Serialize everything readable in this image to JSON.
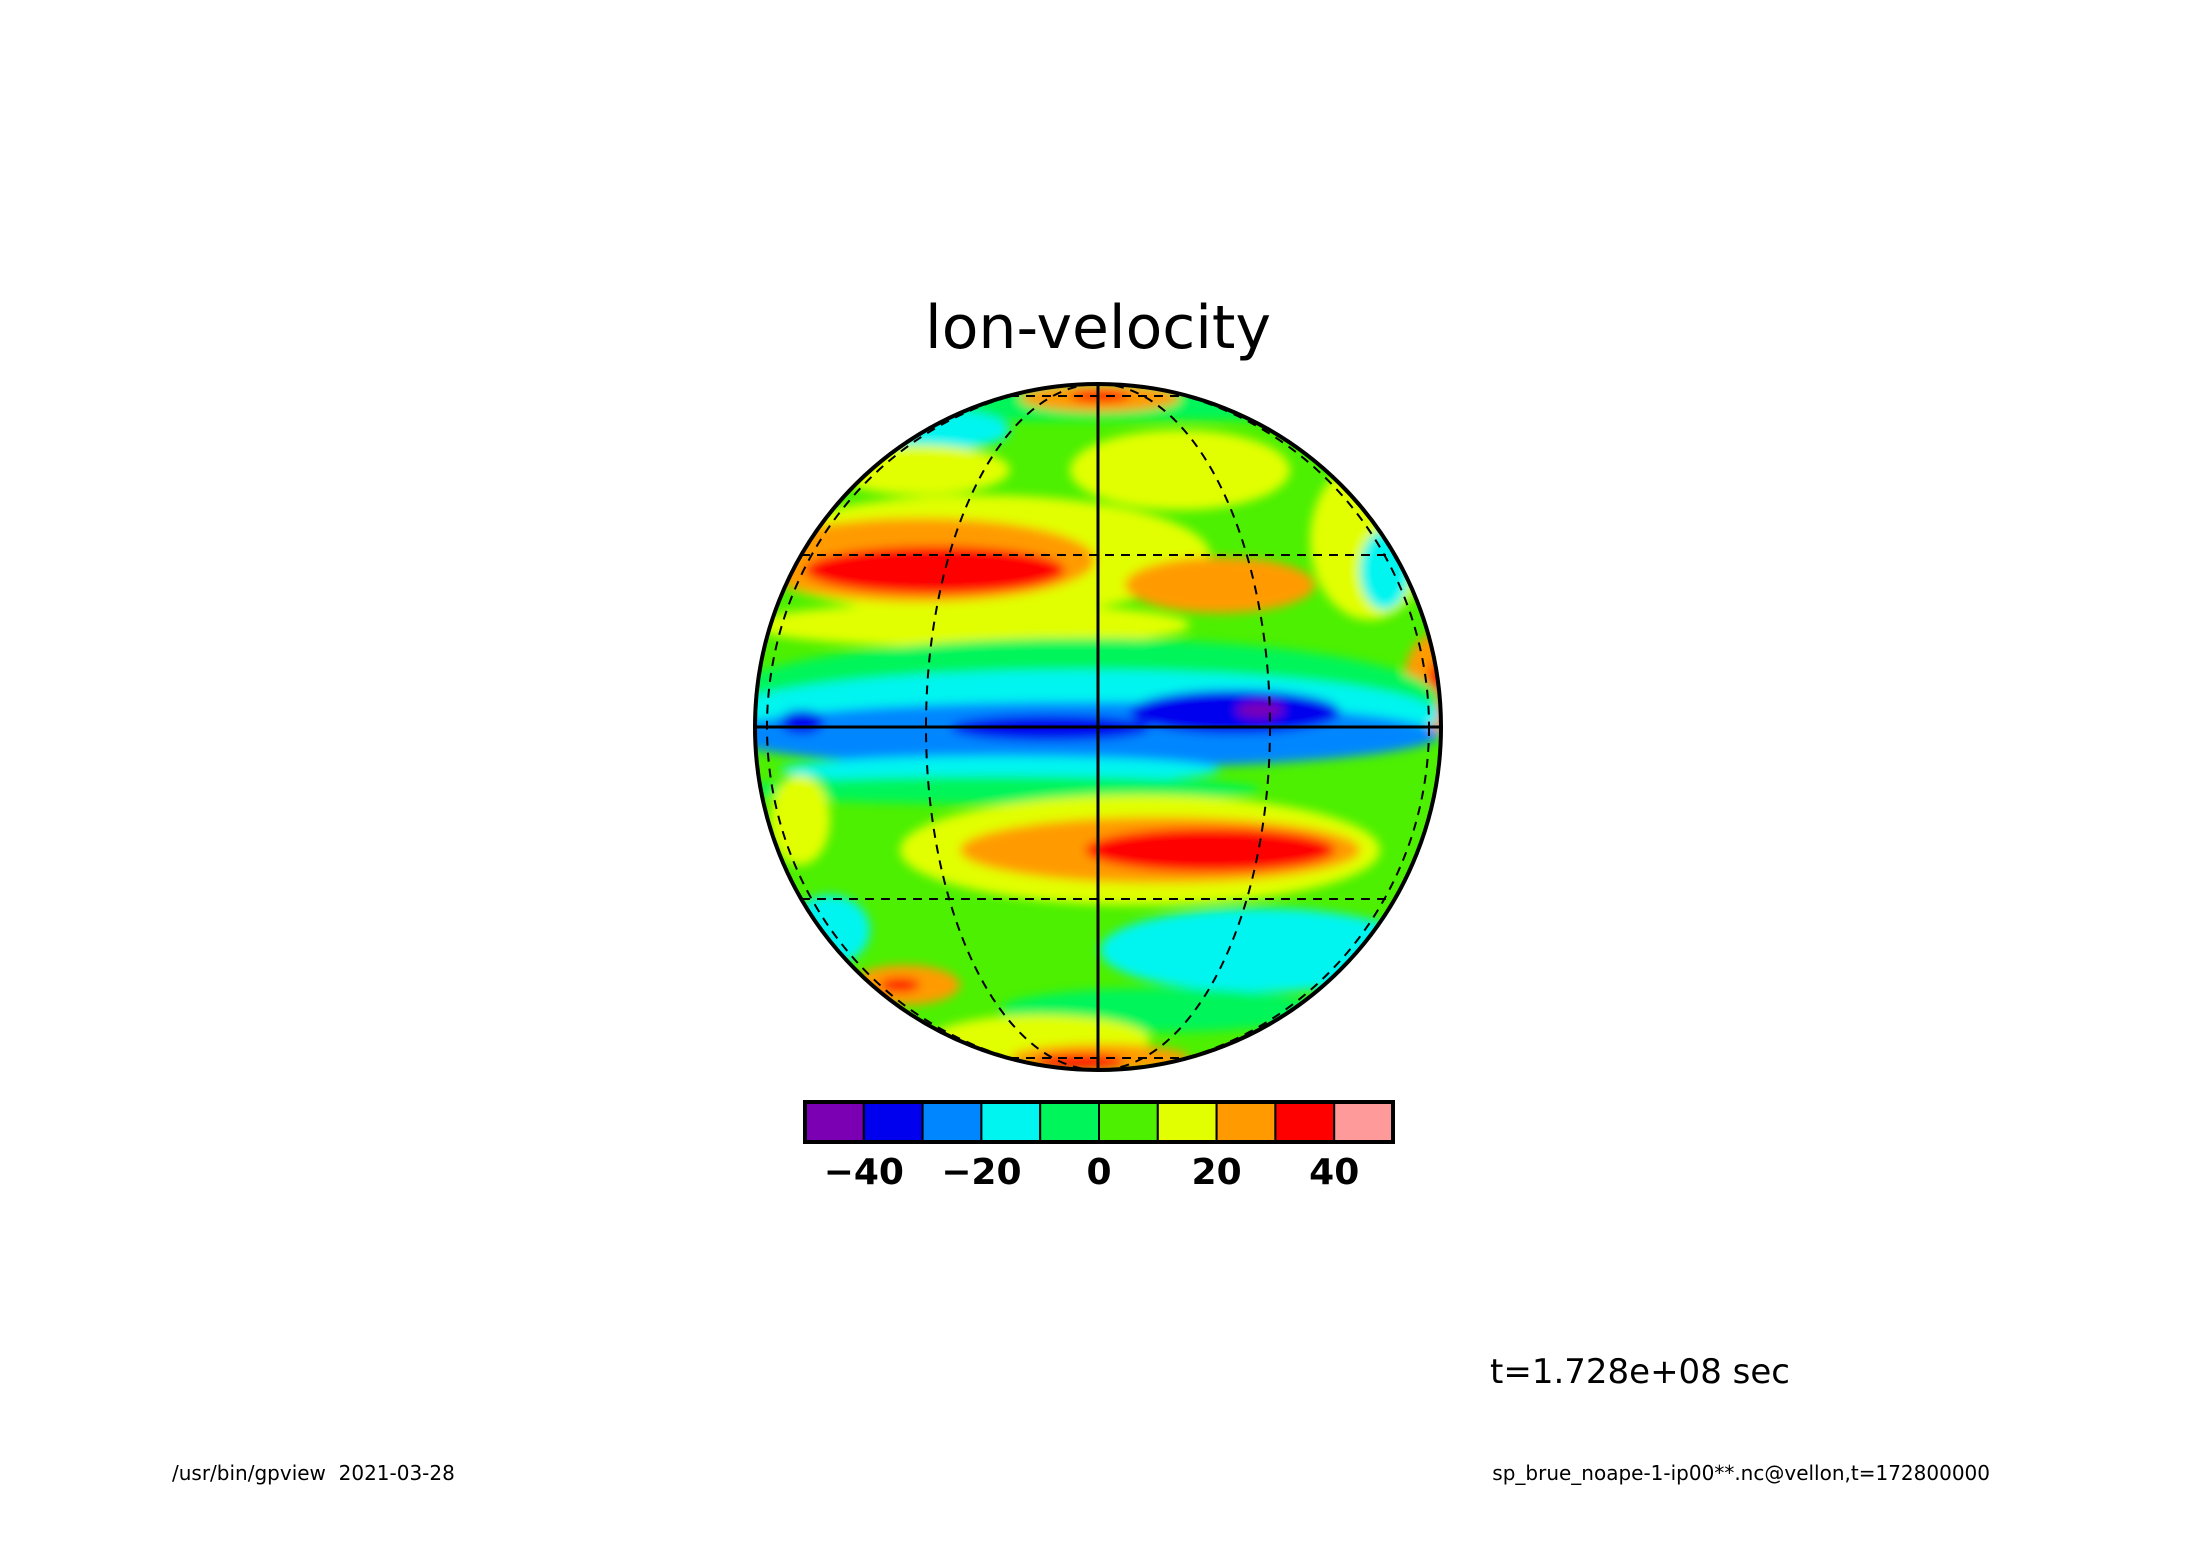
{
  "chart_data": {
    "type": "heatmap",
    "projection": "orthographic",
    "title": "lon-velocity",
    "time_label": "t=1.728e+08 sec",
    "footer_left": "/usr/bin/gpview  2021-03-28",
    "footer_right": "sp_brue_noape-1-ip00**.nc@vellon,t=172800000",
    "colorbar": {
      "levels": [
        -50,
        -40,
        -30,
        -20,
        -10,
        0,
        10,
        20,
        30,
        40,
        50
      ],
      "colors": [
        "#7b00b4",
        "#0000ee",
        "#0087ff",
        "#00f5f0",
        "#00f55a",
        "#4cf000",
        "#e1ff00",
        "#ff9b00",
        "#ff0000",
        "#ff9a9a"
      ],
      "tick_values": [
        -40,
        -20,
        0,
        20,
        40
      ],
      "tick_labels": [
        "−40",
        "−20",
        "0",
        "20",
        "40"
      ]
    },
    "graticule": {
      "latitudes_deg": [
        -75,
        -30,
        0,
        30,
        75
      ],
      "longitude_offsets_deg": [
        -75,
        -30,
        0,
        30,
        75
      ],
      "solid": [
        "equator",
        "central_meridian"
      ]
    },
    "field_features": [
      {
        "desc": "equatorial easterly jet",
        "lat_deg": 0,
        "lon_deg": 0,
        "value": -35
      },
      {
        "desc": "westerly jet north",
        "lat_deg": 32,
        "lon_deg": -50,
        "value": 45
      },
      {
        "desc": "westerly jet south",
        "lat_deg": -22,
        "lon_deg": 25,
        "value": 45
      },
      {
        "desc": "minimum core",
        "lat_deg": 3,
        "lon_deg": 32,
        "value": -45
      }
    ]
  }
}
